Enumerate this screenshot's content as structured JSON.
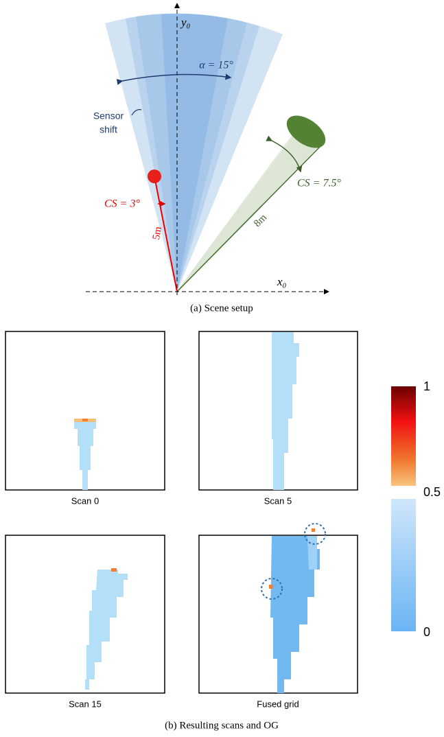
{
  "scene": {
    "y_axis": "y₀",
    "x_axis": "x₀",
    "alpha": "α = 15°",
    "sensor_shift": [
      "Sensor",
      "shift"
    ],
    "red_cs": "CS = 3°",
    "red_range": "5m",
    "green_cs": "CS = 7.5°",
    "green_range": "8m",
    "caption": "(a) Scene setup"
  },
  "scans": {
    "labels": [
      "Scan 0",
      "Scan 5",
      "Scan 15",
      "Fused grid"
    ],
    "colorbar_ticks": [
      1,
      0.5,
      0
    ],
    "caption": "(b) Resulting scans and OG"
  }
}
